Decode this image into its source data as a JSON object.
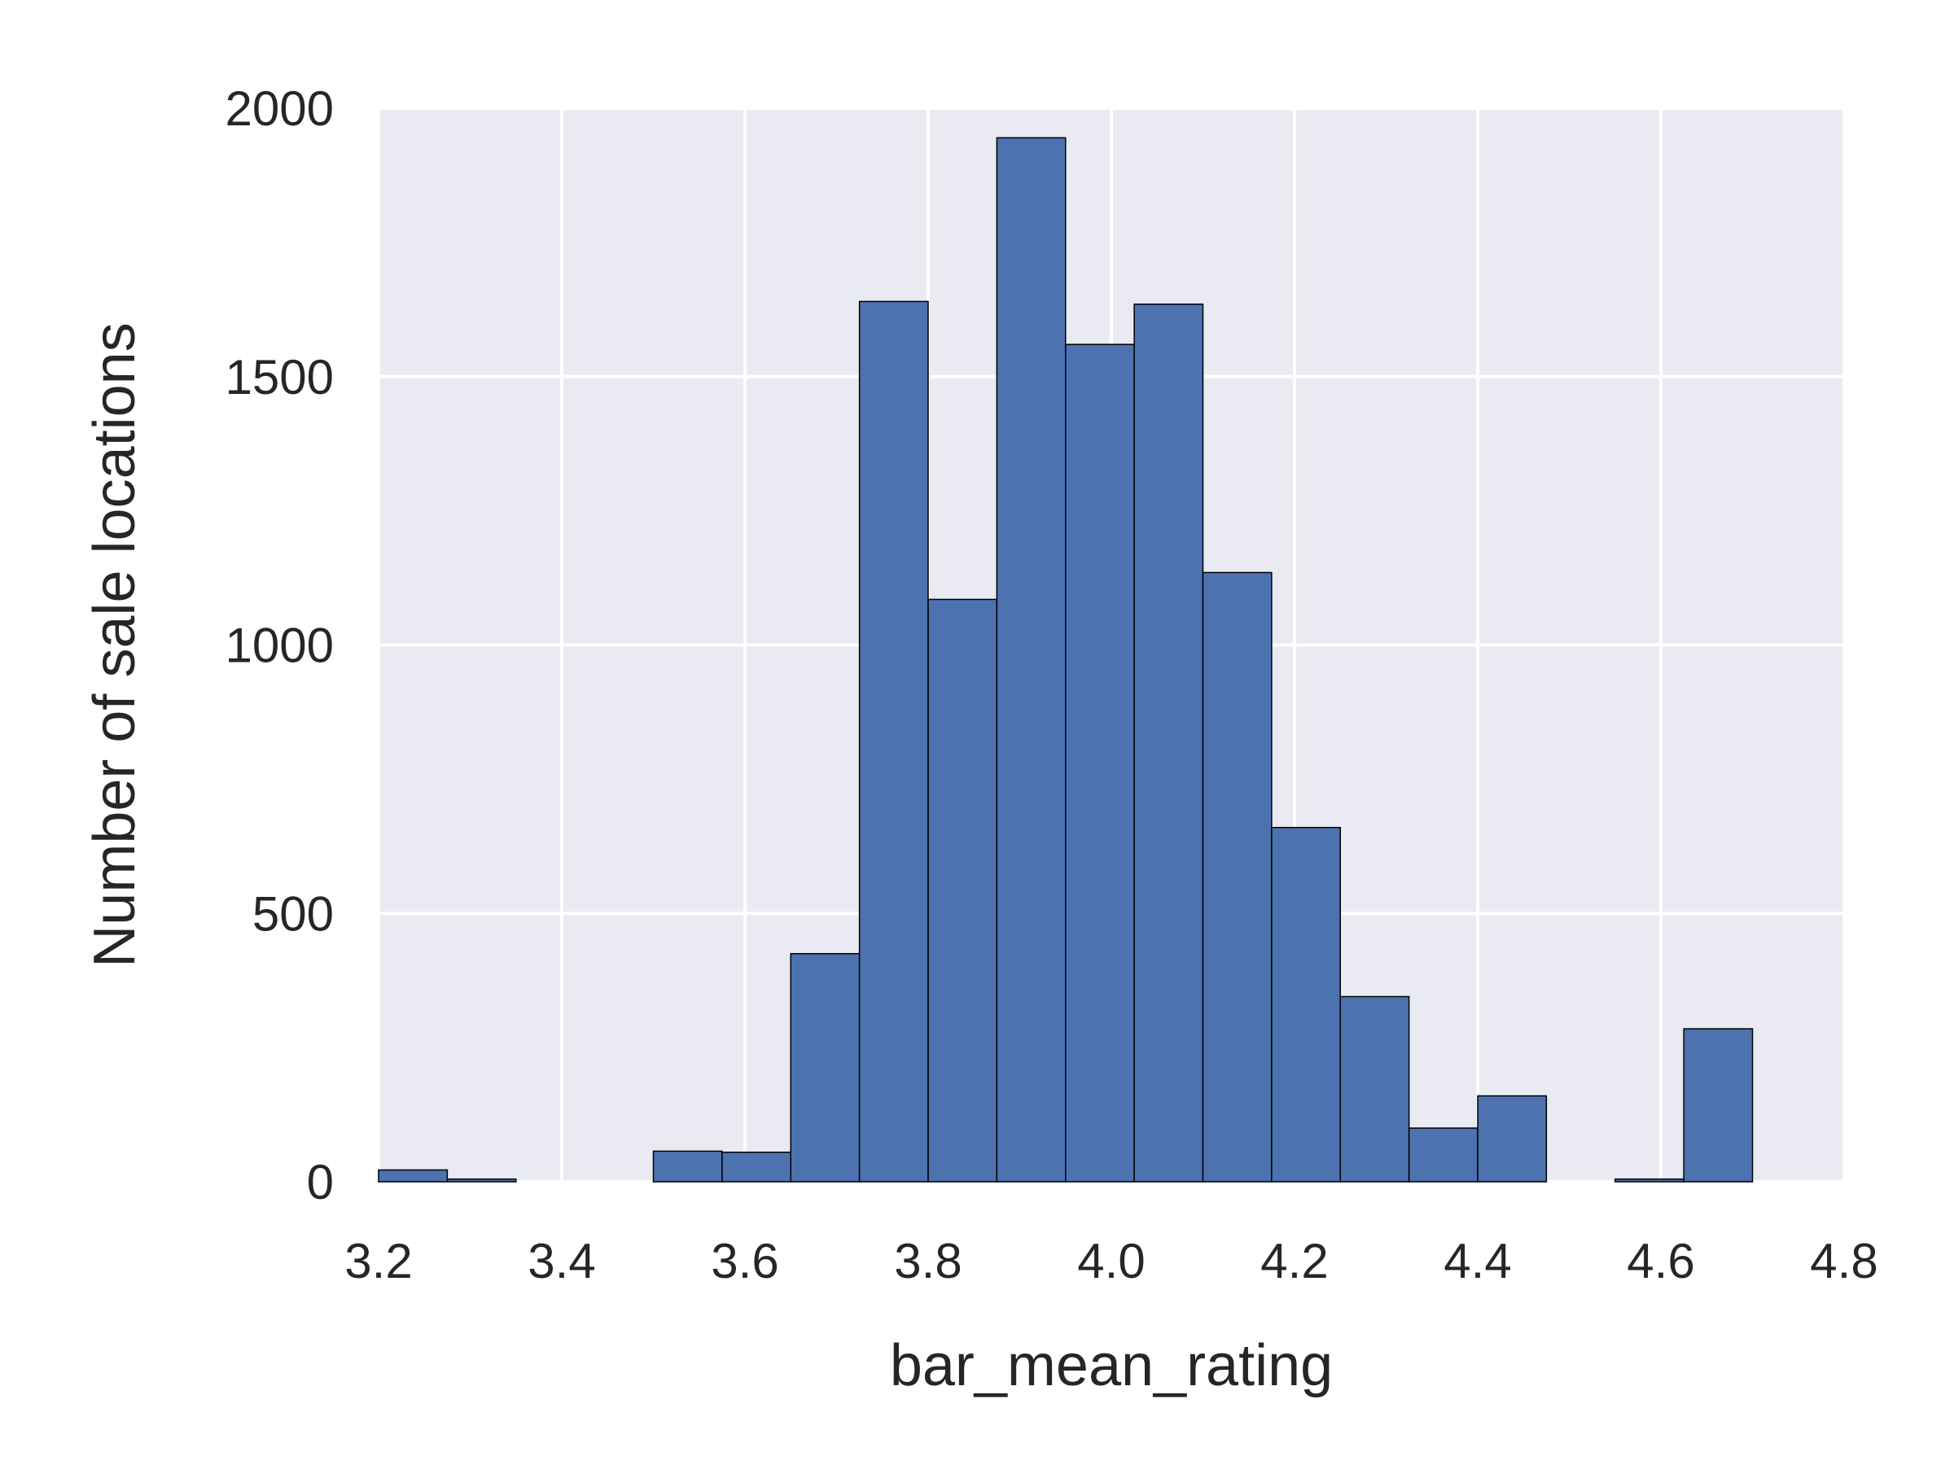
{
  "chart_data": {
    "type": "bar",
    "title": "",
    "xlabel": "bar_mean_rating",
    "ylabel": "Number of sale locations",
    "xlim": [
      3.2,
      4.8
    ],
    "ylim": [
      0,
      2000
    ],
    "xticks": [
      "3.2",
      "3.4",
      "3.6",
      "3.8",
      "4.0",
      "4.2",
      "4.4",
      "4.6",
      "4.8"
    ],
    "yticks": [
      "0",
      "500",
      "1000",
      "1500",
      "2000"
    ],
    "bin_edges": [
      3.2,
      3.275,
      3.35,
      3.425,
      3.5,
      3.575,
      3.65,
      3.725,
      3.8,
      3.875,
      3.95,
      4.025,
      4.1,
      4.175,
      4.25,
      4.325,
      4.4,
      4.475,
      4.55,
      4.625,
      4.7
    ],
    "values": [
      22,
      5,
      0,
      0,
      57,
      55,
      425,
      1640,
      1085,
      1945,
      1560,
      1635,
      1135,
      660,
      345,
      100,
      160,
      0,
      5,
      285
    ],
    "grid": true,
    "legend": "none"
  },
  "colors": {
    "background": "#ffffff",
    "plot_background": "#EAEAF2",
    "grid": "#ffffff",
    "bar_fill": "#4C72B0",
    "bar_edge": "#000000",
    "text": "#262626"
  }
}
